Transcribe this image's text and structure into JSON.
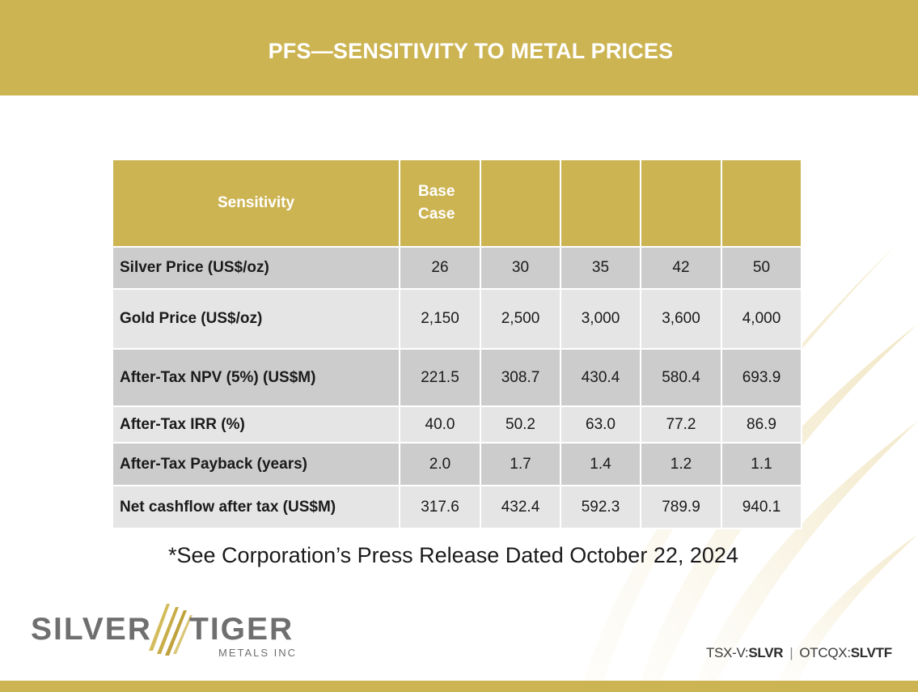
{
  "title": "PFS—SENSITIVITY TO METAL PRICES",
  "table": {
    "header": {
      "label": "Sensitivity",
      "base_case": "Base Case",
      "extra": [
        "",
        "",
        "",
        ""
      ]
    },
    "rows": [
      {
        "label": "Silver Price (US$/oz)",
        "values": [
          "26",
          "30",
          "35",
          "42",
          "50"
        ]
      },
      {
        "label": "Gold Price (US$/oz)",
        "values": [
          "2,150",
          "2,500",
          "3,000",
          "3,600",
          "4,000"
        ]
      },
      {
        "label": "After-Tax NPV (5%) (US$M)",
        "values": [
          "221.5",
          "308.7",
          "430.4",
          "580.4",
          "693.9"
        ]
      },
      {
        "label": "After-Tax IRR (%)",
        "values": [
          "40.0",
          "50.2",
          "63.0",
          "77.2",
          "86.9"
        ]
      },
      {
        "label": "After-Tax Payback (years)",
        "values": [
          "2.0",
          "1.7",
          "1.4",
          "1.2",
          "1.1"
        ]
      },
      {
        "label": "Net cashflow after tax (US$M)",
        "values": [
          "317.6",
          "432.4",
          "592.3",
          "789.9",
          "940.1"
        ]
      }
    ]
  },
  "footnote": "*See Corporation’s Press Release Dated October 22, 2024",
  "logo": {
    "word1": "SILVER",
    "word2": "TIGER",
    "subtitle": "METALS INC"
  },
  "tickers": {
    "tsx_prefix": "TSX-V:",
    "tsx_symbol": "SLVR",
    "separator": "|",
    "otc_prefix": "OTCQX:",
    "otc_symbol": "SLVTF"
  },
  "colors": {
    "accent": "#ccb453",
    "row_dark": "#cccccc",
    "row_light": "#e5e5e5",
    "logo_gray": "#6f6f6f"
  }
}
